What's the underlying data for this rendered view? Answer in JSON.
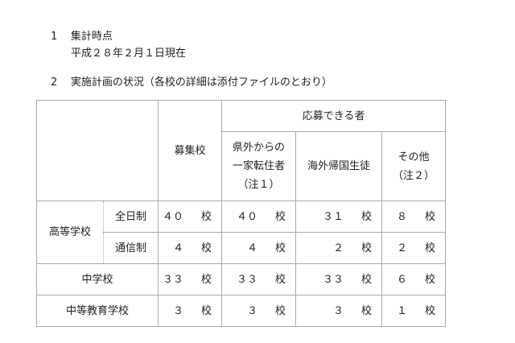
{
  "section1": {
    "number": "1",
    "title": "集計時点",
    "date": "平成２８年２月１日現在"
  },
  "section2": {
    "number": "2",
    "title": "実施計画の状況（各校の詳細は添付ファイルのとおり）"
  },
  "table": {
    "header": {
      "recruiting": "募集校",
      "applicants": "応募できる者",
      "relocated": [
        "県外からの",
        "一家転住者",
        "（注１）"
      ],
      "returnees": "海外帰国生徒",
      "other": [
        "その他",
        "（注２）"
      ]
    },
    "unit": "校",
    "rows": [
      {
        "group": "高等学校",
        "sub": "全日制",
        "values": [
          "４０",
          "４０",
          "３１",
          "８"
        ]
      },
      {
        "sub": "通信制",
        "values": [
          "４",
          "４",
          "２",
          "２"
        ]
      },
      {
        "label": "中学校",
        "values": [
          "３３",
          "３３",
          "３３",
          "６"
        ]
      },
      {
        "label": "中等教育学校",
        "values": [
          "３",
          "３",
          "３",
          "１"
        ]
      }
    ]
  }
}
